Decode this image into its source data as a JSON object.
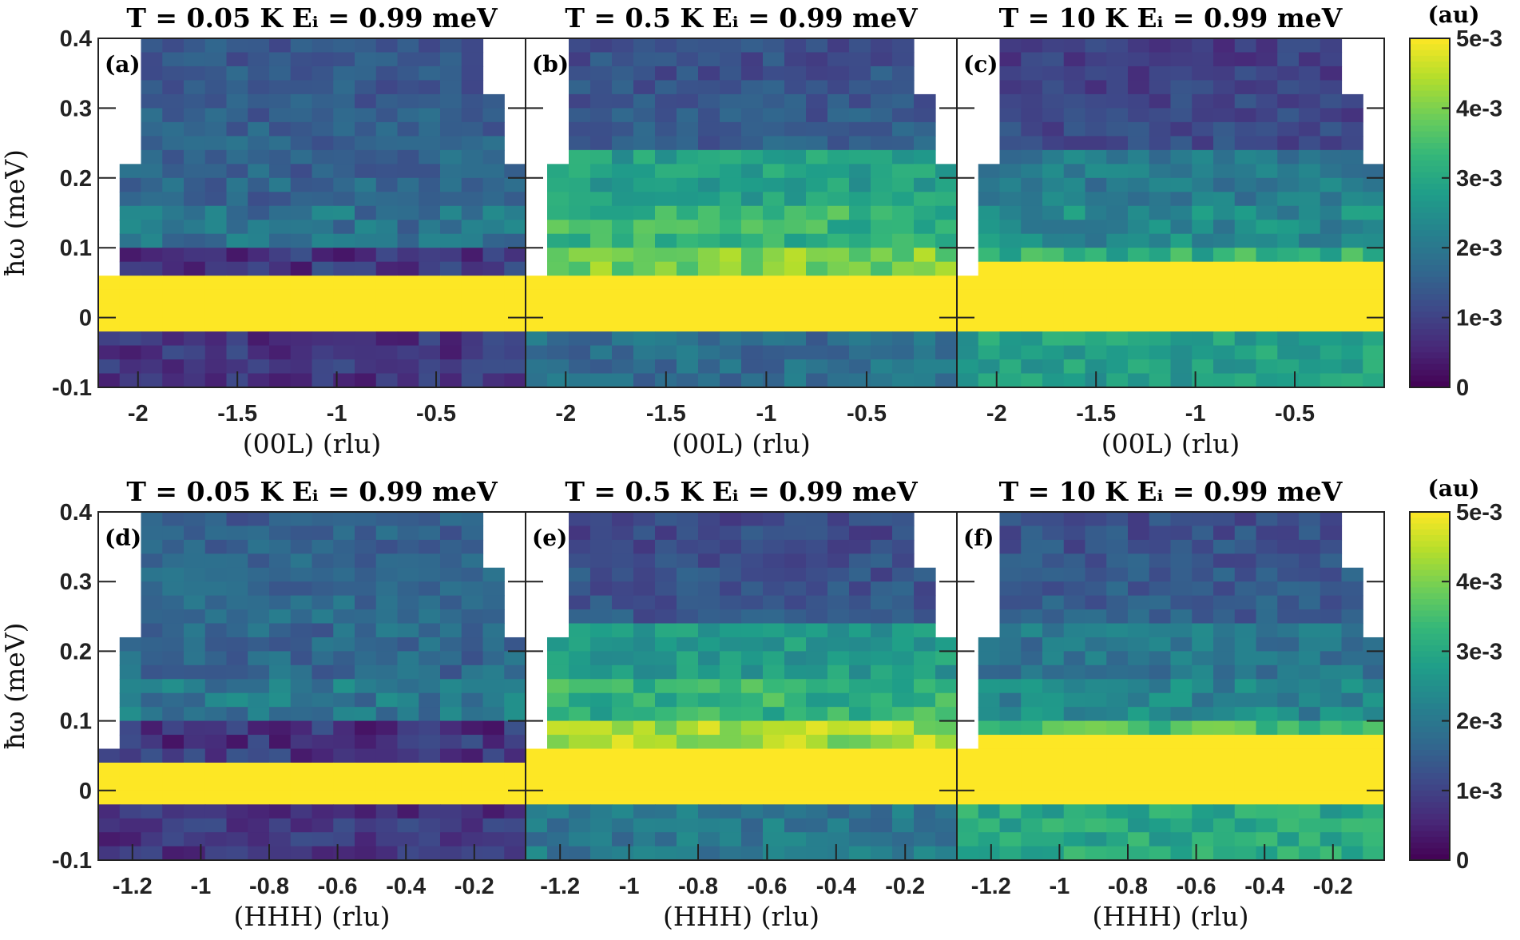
{
  "chart_data": [
    {
      "type": "heatmap",
      "panel": "(a)",
      "title": "T = 0.05 K E_i = 0.99 meV",
      "xlabel": "(00L) (rlu)",
      "ylabel": "ħω (meV)",
      "x_ticks": [
        "-2",
        "-1.5",
        "-1",
        "-0.5"
      ],
      "y_ticks": [
        "0.4",
        "0.3",
        "0.2",
        "0.1",
        "0",
        "-0.1"
      ],
      "xlim": [
        -2.2,
        -0.05
      ],
      "ylim": [
        -0.1,
        0.4
      ],
      "levels": {
        "inelastic_dip": 0.8,
        "inelastic": 1.9,
        "upper": 1.6,
        "negative": 0.8
      },
      "band_top": 0.06
    },
    {
      "type": "heatmap",
      "panel": "(b)",
      "title": "T = 0.5 K E_i = 0.99 meV",
      "xlabel": "(00L) (rlu)",
      "ylabel": "ħω (meV)",
      "x_ticks": [
        "-2",
        "-1.5",
        "-1",
        "-0.5"
      ],
      "y_ticks": [
        "0.4",
        "0.3",
        "0.2",
        "0.1",
        "0",
        "-0.1"
      ],
      "xlim": [
        -2.2,
        -0.05
      ],
      "ylim": [
        -0.1,
        0.4
      ],
      "levels": {
        "inelastic_dip": 4.0,
        "inelastic": 3.3,
        "upper": 1.5,
        "negative": 1.8
      },
      "band_top": 0.06
    },
    {
      "type": "heatmap",
      "panel": "(c)",
      "title": "T = 10 K E_i = 0.99 meV",
      "xlabel": "(00L) (rlu)",
      "ylabel": "ħω (meV)",
      "x_ticks": [
        "-2",
        "-1.5",
        "-1",
        "-0.5"
      ],
      "y_ticks": [
        "0.4",
        "0.3",
        "0.2",
        "0.1",
        "0",
        "-0.1"
      ],
      "xlim": [
        -2.2,
        -0.05
      ],
      "ylim": [
        -0.1,
        0.4
      ],
      "levels": {
        "inelastic_dip": 3.2,
        "inelastic": 2.4,
        "upper": 1.2,
        "negative": 2.8
      },
      "band_top": 0.08
    },
    {
      "type": "heatmap",
      "panel": "(d)",
      "title": "T = 0.05 K E_i = 0.99 meV",
      "xlabel": "(HHH) (rlu)",
      "ylabel": "ħω (meV)",
      "x_ticks": [
        "-1.2",
        "-1",
        "-0.8",
        "-0.6",
        "-0.4",
        "-0.2"
      ],
      "y_ticks": [
        "0.4",
        "0.3",
        "0.2",
        "0.1",
        "0",
        "-0.1"
      ],
      "xlim": [
        -1.3,
        -0.05
      ],
      "ylim": [
        -0.1,
        0.4
      ],
      "levels": {
        "inelastic_dip": 0.8,
        "inelastic": 2.0,
        "upper": 1.8,
        "negative": 0.8
      },
      "band_top": 0.04
    },
    {
      "type": "heatmap",
      "panel": "(e)",
      "title": "T = 0.5 K E_i = 0.99 meV",
      "xlabel": "(HHH) (rlu)",
      "ylabel": "ħω (meV)",
      "x_ticks": [
        "-1.2",
        "-1",
        "-0.8",
        "-0.6",
        "-0.4",
        "-0.2"
      ],
      "y_ticks": [
        "0.4",
        "0.3",
        "0.2",
        "0.1",
        "0",
        "-0.1"
      ],
      "xlim": [
        -1.3,
        -0.05
      ],
      "ylim": [
        -0.1,
        0.4
      ],
      "levels": {
        "inelastic_dip": 4.3,
        "inelastic": 3.2,
        "upper": 1.4,
        "negative": 2.0
      },
      "band_top": 0.06
    },
    {
      "type": "heatmap",
      "panel": "(f)",
      "title": "T = 10 K E_i = 0.99 meV",
      "xlabel": "(HHH) (rlu)",
      "ylabel": "ħω (meV)",
      "x_ticks": [
        "-1.2",
        "-1",
        "-0.8",
        "-0.6",
        "-0.4",
        "-0.2"
      ],
      "y_ticks": [
        "0.4",
        "0.3",
        "0.2",
        "0.1",
        "0",
        "-0.1"
      ],
      "xlim": [
        -1.3,
        -0.05
      ],
      "ylim": [
        -0.1,
        0.4
      ],
      "levels": {
        "inelastic_dip": 3.5,
        "inelastic": 2.3,
        "upper": 1.5,
        "negative": 3.0
      },
      "band_top": 0.08
    }
  ],
  "colorbars": [
    {
      "title": "(au)",
      "ticks": [
        "5e-3",
        "4e-3",
        "3e-3",
        "2e-3",
        "1e-3",
        "0"
      ],
      "range": [
        0,
        0.005
      ]
    },
    {
      "title": "(au)",
      "ticks": [
        "5e-3",
        "4e-3",
        "3e-3",
        "2e-3",
        "1e-3",
        "0"
      ],
      "range": [
        0,
        0.005
      ]
    }
  ],
  "colormap": [
    "#440154",
    "#482878",
    "#3e4989",
    "#31688e",
    "#26828e",
    "#1f9e89",
    "#35b779",
    "#6ece58",
    "#b5de2b",
    "#fde725"
  ]
}
